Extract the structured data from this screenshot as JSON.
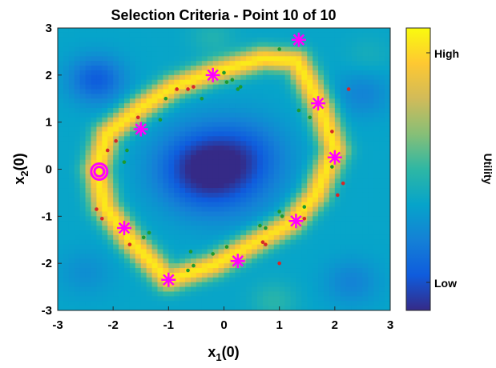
{
  "chart_data": {
    "type": "heatmap",
    "title": "Selection Criteria - Point 10 of 10",
    "xlabel": {
      "base": "x",
      "sub": "1",
      "suffix": "(0)"
    },
    "ylabel": {
      "base": "x",
      "sub": "2",
      "suffix": "(0)"
    },
    "xlim": [
      -3,
      3
    ],
    "ylim": [
      -3,
      3
    ],
    "xticks": [
      "-3",
      "-2",
      "-1",
      "0",
      "1",
      "2",
      "3"
    ],
    "yticks": [
      "-3",
      "-2",
      "-1",
      "0",
      "1",
      "2",
      "3"
    ],
    "grid": false,
    "colorbar": {
      "label": "Utility",
      "high_label": "High",
      "low_label": "Low",
      "colormap": "parula"
    },
    "utility_ring": {
      "description_values": "closed ridge of high utility",
      "points": [
        [
          -2.3,
          0.0
        ],
        [
          -2.1,
          0.75
        ],
        [
          -1.5,
          1.3
        ],
        [
          -0.9,
          1.75
        ],
        [
          -0.2,
          2.05
        ],
        [
          0.7,
          2.35
        ],
        [
          1.3,
          2.3
        ],
        [
          1.5,
          1.9
        ],
        [
          1.75,
          1.3
        ],
        [
          2.0,
          0.4
        ],
        [
          1.65,
          -0.55
        ],
        [
          1.2,
          -1.15
        ],
        [
          0.5,
          -1.6
        ],
        [
          -0.2,
          -2.05
        ],
        [
          -1.0,
          -2.35
        ],
        [
          -1.7,
          -1.5
        ],
        [
          -2.15,
          -0.8
        ]
      ]
    },
    "series": [
      {
        "name": "selected",
        "marker": "asterisk",
        "color": "#ff00ff",
        "points": [
          [
            1.35,
            2.75
          ],
          [
            -0.2,
            2.0
          ],
          [
            1.7,
            1.4
          ],
          [
            -1.5,
            0.85
          ],
          [
            2.0,
            0.25
          ],
          [
            1.3,
            -1.1
          ],
          [
            -1.8,
            -1.25
          ],
          [
            0.25,
            -1.95
          ],
          [
            -1.0,
            -2.35
          ]
        ]
      },
      {
        "name": "current",
        "marker": "circle",
        "color": "#ff00ff",
        "points": [
          [
            -2.25,
            -0.05
          ]
        ]
      },
      {
        "name": "green-samples",
        "marker": "dot",
        "color": "#1d9a2e",
        "points": [
          [
            1.0,
            2.55
          ],
          [
            0.0,
            2.05
          ],
          [
            0.15,
            1.9
          ],
          [
            0.05,
            1.85
          ],
          [
            0.3,
            1.75
          ],
          [
            0.25,
            1.7
          ],
          [
            -1.05,
            1.5
          ],
          [
            -0.4,
            1.5
          ],
          [
            -1.15,
            1.05
          ],
          [
            -1.75,
            0.4
          ],
          [
            -1.8,
            0.15
          ],
          [
            1.35,
            1.25
          ],
          [
            1.55,
            1.1
          ],
          [
            1.95,
            0.05
          ],
          [
            1.0,
            -0.9
          ],
          [
            1.05,
            -1.0
          ],
          [
            1.45,
            -0.8
          ],
          [
            0.75,
            -1.25
          ],
          [
            0.65,
            -1.2
          ],
          [
            0.05,
            -1.65
          ],
          [
            -0.2,
            -1.8
          ],
          [
            -0.6,
            -1.75
          ],
          [
            -1.35,
            -1.35
          ],
          [
            -1.45,
            -1.45
          ],
          [
            -0.55,
            -2.05
          ],
          [
            -0.65,
            -2.15
          ]
        ]
      },
      {
        "name": "red-samples",
        "marker": "dot",
        "color": "#d62728",
        "points": [
          [
            -0.55,
            1.75
          ],
          [
            -0.65,
            1.7
          ],
          [
            -0.85,
            1.7
          ],
          [
            -1.55,
            1.1
          ],
          [
            -1.95,
            0.6
          ],
          [
            -2.1,
            0.4
          ],
          [
            2.25,
            1.7
          ],
          [
            1.95,
            0.8
          ],
          [
            2.15,
            -0.3
          ],
          [
            2.05,
            -0.55
          ],
          [
            1.45,
            -1.05
          ],
          [
            0.7,
            -1.55
          ],
          [
            0.75,
            -1.6
          ],
          [
            1.0,
            -2.0
          ],
          [
            -2.3,
            -0.85
          ],
          [
            -2.2,
            -1.05
          ],
          [
            -1.7,
            -1.6
          ]
        ]
      }
    ]
  }
}
